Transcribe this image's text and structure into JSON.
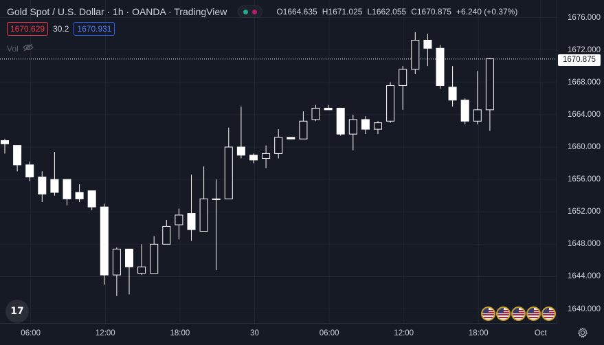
{
  "header": {
    "title": "Gold Spot / U.S. Dollar · 1h · OANDA · TradingView",
    "ohlc": {
      "open_label": "O",
      "open": "1664.635",
      "high_label": "H",
      "high": "1671.025",
      "low_label": "L",
      "low": "1662.055",
      "close_label": "C",
      "close": "1670.875",
      "change": "+6.240 (+0.37%)"
    }
  },
  "quote": {
    "bid": "1670.629",
    "spread": "30.2",
    "ask": "1670.931"
  },
  "volume": {
    "label": "Vol"
  },
  "current_price": "1670.875",
  "logo": {
    "text": "17"
  },
  "colors": {
    "background": "#161a25",
    "candle_up": "#131722",
    "candle_down": "#ffffff",
    "wick": "#ffffff",
    "bid": "#f23645",
    "ask": "#2962ff"
  },
  "icons": [
    "eye-off-icon",
    "gear-icon",
    "tradingview-logo-icon",
    "us-flag-icon"
  ],
  "chart_data": {
    "type": "candlestick",
    "y_ticks": [
      "1640.000",
      "1644.000",
      "1648.000",
      "1652.000",
      "1656.000",
      "1660.000",
      "1664.000",
      "1668.000",
      "1672.000",
      "1676.000"
    ],
    "x_ticks": [
      "06:00",
      "12:00",
      "18:00",
      "30",
      "06:00",
      "12:00",
      "18:00",
      "Oct"
    ],
    "ylim": [
      1638.0,
      1677.6
    ],
    "x_index_range": [
      0,
      44
    ],
    "x_tick_index": [
      2,
      8,
      14,
      20,
      26,
      32,
      38,
      43
    ],
    "candles": [
      {
        "o": 1660.8,
        "h": 1661.0,
        "l": 1659.2,
        "c": 1660.4
      },
      {
        "o": 1660.2,
        "h": 1660.2,
        "l": 1657.0,
        "c": 1657.8
      },
      {
        "o": 1657.8,
        "h": 1658.2,
        "l": 1655.8,
        "c": 1656.3
      },
      {
        "o": 1656.3,
        "h": 1657.0,
        "l": 1653.2,
        "c": 1654.2
      },
      {
        "o": 1656.0,
        "h": 1659.4,
        "l": 1654.0,
        "c": 1654.4
      },
      {
        "o": 1656.0,
        "h": 1656.0,
        "l": 1652.8,
        "c": 1653.6
      },
      {
        "o": 1654.4,
        "h": 1655.4,
        "l": 1653.2,
        "c": 1653.6
      },
      {
        "o": 1654.6,
        "h": 1654.6,
        "l": 1652.2,
        "c": 1652.6
      },
      {
        "o": 1652.6,
        "h": 1653.0,
        "l": 1643.0,
        "c": 1644.2
      },
      {
        "o": 1644.2,
        "h": 1647.6,
        "l": 1641.6,
        "c": 1647.4
      },
      {
        "o": 1647.4,
        "h": 1647.4,
        "l": 1641.8,
        "c": 1645.2
      },
      {
        "o": 1644.4,
        "h": 1648.0,
        "l": 1644.2,
        "c": 1645.2
      },
      {
        "o": 1644.4,
        "h": 1649.0,
        "l": 1644.4,
        "c": 1648.0
      },
      {
        "o": 1648.0,
        "h": 1651.0,
        "l": 1648.0,
        "c": 1650.2
      },
      {
        "o": 1650.4,
        "h": 1652.4,
        "l": 1648.6,
        "c": 1651.6
      },
      {
        "o": 1651.8,
        "h": 1656.6,
        "l": 1648.4,
        "c": 1649.8
      },
      {
        "o": 1649.6,
        "h": 1657.6,
        "l": 1649.6,
        "c": 1653.6
      },
      {
        "o": 1653.6,
        "h": 1656.0,
        "l": 1644.8,
        "c": 1653.6
      },
      {
        "o": 1653.6,
        "h": 1662.4,
        "l": 1653.6,
        "c": 1660.0
      },
      {
        "o": 1660.0,
        "h": 1665.0,
        "l": 1658.6,
        "c": 1659.0
      },
      {
        "o": 1659.0,
        "h": 1659.2,
        "l": 1658.0,
        "c": 1658.4
      },
      {
        "o": 1658.6,
        "h": 1660.2,
        "l": 1657.4,
        "c": 1659.2
      },
      {
        "o": 1659.2,
        "h": 1662.2,
        "l": 1658.6,
        "c": 1661.2
      },
      {
        "o": 1661.2,
        "h": 1661.2,
        "l": 1661.0,
        "c": 1661.0
      },
      {
        "o": 1661.0,
        "h": 1664.4,
        "l": 1661.0,
        "c": 1663.2
      },
      {
        "o": 1663.4,
        "h": 1665.2,
        "l": 1663.2,
        "c": 1664.8
      },
      {
        "o": 1664.8,
        "h": 1665.2,
        "l": 1664.6,
        "c": 1664.6
      },
      {
        "o": 1664.8,
        "h": 1664.8,
        "l": 1661.4,
        "c": 1661.6
      },
      {
        "o": 1661.6,
        "h": 1664.0,
        "l": 1659.6,
        "c": 1663.4
      },
      {
        "o": 1663.4,
        "h": 1663.8,
        "l": 1661.6,
        "c": 1662.2
      },
      {
        "o": 1662.2,
        "h": 1663.2,
        "l": 1661.6,
        "c": 1663.0
      },
      {
        "o": 1663.2,
        "h": 1668.0,
        "l": 1663.0,
        "c": 1667.6
      },
      {
        "o": 1667.6,
        "h": 1670.0,
        "l": 1664.6,
        "c": 1669.6
      },
      {
        "o": 1669.6,
        "h": 1674.2,
        "l": 1669.0,
        "c": 1673.2
      },
      {
        "o": 1673.2,
        "h": 1674.0,
        "l": 1670.0,
        "c": 1672.2
      },
      {
        "o": 1672.2,
        "h": 1672.6,
        "l": 1667.2,
        "c": 1667.6
      },
      {
        "o": 1667.4,
        "h": 1670.0,
        "l": 1665.0,
        "c": 1665.8
      },
      {
        "o": 1665.8,
        "h": 1666.0,
        "l": 1662.8,
        "c": 1663.2
      },
      {
        "o": 1663.2,
        "h": 1669.4,
        "l": 1662.8,
        "c": 1664.6
      },
      {
        "o": 1664.6,
        "h": 1671.0,
        "l": 1662.0,
        "c": 1670.9
      }
    ]
  }
}
